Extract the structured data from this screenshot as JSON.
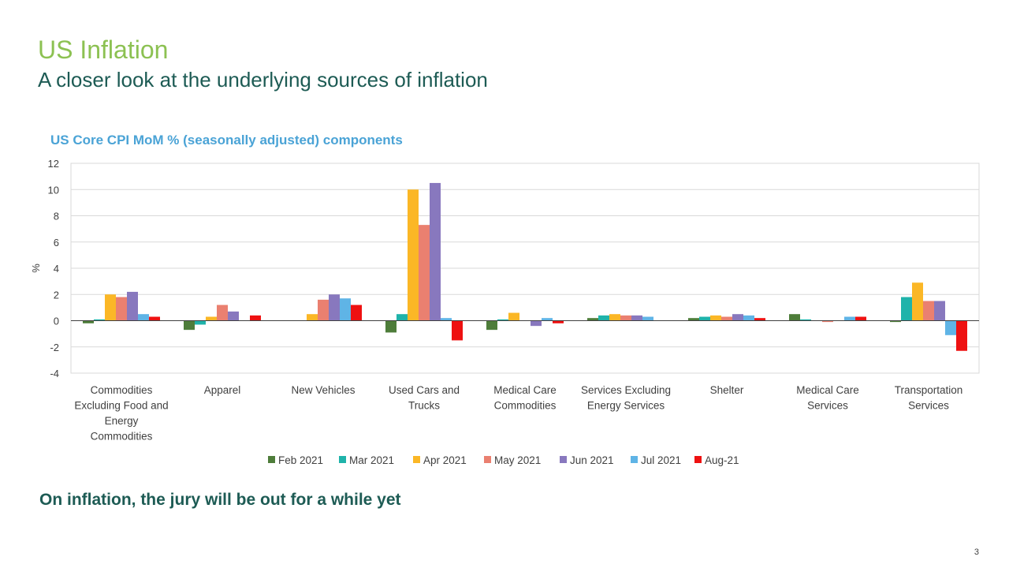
{
  "slide": {
    "title": "US Inflation",
    "subtitle": "A closer look at the underlying sources of inflation",
    "chart_title": "US Core CPI MoM % (seasonally adjusted) components",
    "footer": "On inflation, the jury will be out for a while yet",
    "page_number": "3"
  },
  "colors": {
    "title": "#8cc152",
    "subtitle": "#1d5b54",
    "chart_title": "#4aa3d6"
  },
  "chart_data": {
    "type": "bar",
    "title": "US Core CPI MoM % (seasonally adjusted) components",
    "ylabel": "%",
    "xlabel": "",
    "ylim": [
      -4,
      12
    ],
    "yticks": [
      12,
      10,
      8,
      6,
      4,
      2,
      0,
      -2,
      -4
    ],
    "grid": true,
    "legend_position": "bottom",
    "categories": [
      "Commodities Excluding Food and Energy Commodities",
      "Apparel",
      "New Vehicles",
      "Used Cars and Trucks",
      "Medical Care Commodities",
      "Services Excluding Energy Services",
      "Shelter",
      "Medical Care Services",
      "Transportation Services"
    ],
    "category_lines": [
      [
        "Commodities",
        "Excluding Food and",
        "Energy",
        "Commodities"
      ],
      [
        "Apparel"
      ],
      [
        "New Vehicles"
      ],
      [
        "Used Cars and",
        "Trucks"
      ],
      [
        "Medical Care",
        "Commodities"
      ],
      [
        "Services Excluding",
        "Energy Services"
      ],
      [
        "Shelter"
      ],
      [
        "Medical Care",
        "Services"
      ],
      [
        "Transportation",
        "Services"
      ]
    ],
    "series": [
      {
        "name": "Feb 2021",
        "color": "#4e7d3a",
        "values": [
          -0.2,
          -0.7,
          0.0,
          -0.9,
          -0.7,
          0.2,
          0.2,
          0.5,
          -0.1
        ]
      },
      {
        "name": "Mar 2021",
        "color": "#1fb3aa",
        "values": [
          0.1,
          -0.3,
          0.0,
          0.5,
          0.1,
          0.4,
          0.3,
          0.1,
          1.8
        ]
      },
      {
        "name": "Apr 2021",
        "color": "#fbb726",
        "values": [
          2.0,
          0.3,
          0.5,
          10.0,
          0.6,
          0.5,
          0.4,
          0.0,
          2.9
        ]
      },
      {
        "name": "May 2021",
        "color": "#ea8070",
        "values": [
          1.8,
          1.2,
          1.6,
          7.3,
          0.0,
          0.4,
          0.3,
          -0.1,
          1.5
        ]
      },
      {
        "name": "Jun 2021",
        "color": "#8878be",
        "values": [
          2.2,
          0.7,
          2.0,
          10.5,
          -0.4,
          0.4,
          0.5,
          0.0,
          1.5
        ]
      },
      {
        "name": "Jul 2021",
        "color": "#5fb4e6",
        "values": [
          0.5,
          0.0,
          1.7,
          0.2,
          0.2,
          0.3,
          0.4,
          0.3,
          -1.1
        ]
      },
      {
        "name": "Aug-21",
        "color": "#ee1111",
        "values": [
          0.3,
          0.4,
          1.2,
          -1.5,
          -0.2,
          0.0,
          0.2,
          0.3,
          -2.3
        ]
      }
    ]
  }
}
